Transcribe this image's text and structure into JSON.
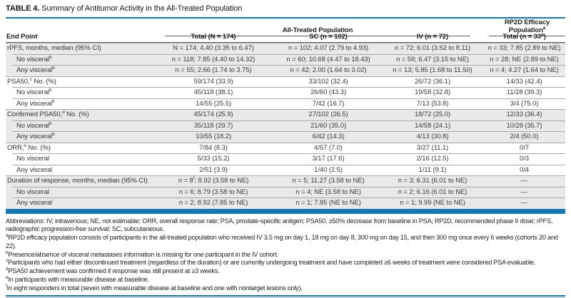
{
  "colors": {
    "accent_blue": "#1478b2",
    "row_shade": "#e9e9e9"
  },
  "title": {
    "label": "TABLE 4.",
    "text": "Summary of Antitumor Activity in the All-Treated Population"
  },
  "table": {
    "group_headers": {
      "all_treated": "All-Treated Population",
      "rp2d": "RP2D Efficacy Population^a"
    },
    "endpoint_label": "End Point",
    "col_headers": [
      "Total (N = 174)",
      "SC (n = 102)",
      "IV (n = 72)",
      "Total (n = 33^a)"
    ],
    "rows": [
      {
        "label": "rPFS, months, median (95% CI)",
        "indent": false,
        "shaded": true,
        "cells": [
          "N = 174; 4.40 (3.35 to 6.47)",
          "n = 102; 4.07 (2.79 to 4.93)",
          "n = 72; 6.01 (3.52 to 8.11)",
          "n = 33; 7.85 (2.89 to NE)"
        ]
      },
      {
        "label": "No visceral^b",
        "indent": true,
        "shaded": true,
        "cells": [
          "n = 118; 7.85 (4.40 to 14.32)",
          "n = 60; 10.68 (4.47 to 18.43)",
          "n = 58; 6.47 (3.15 to NE)",
          "n = 28; NE (2.89 to NE)"
        ]
      },
      {
        "label": "Any visceral^b",
        "indent": true,
        "shaded": true,
        "cells": [
          "n = 55; 2.66 (1.74 to 3.75)",
          "n = 42; 2.00 (1.64 to 3.02)",
          "n = 13; 5.85 (1.68 to 11.50)",
          "n = 4; 4.27 (1.64 to NE)"
        ]
      },
      {
        "label": "PSA50,^c No. (%)",
        "indent": false,
        "shaded": false,
        "cells": [
          "59/174 (33.9)",
          "33/102 (32.4)",
          "26/72 (36.1)",
          "14/33 (42.4)"
        ]
      },
      {
        "label": "No visceral^b",
        "indent": true,
        "shaded": false,
        "cells": [
          "45/118 (38.1)",
          "26/60 (43.3)",
          "19/58 (32.8)",
          "11/28 (39.3)"
        ]
      },
      {
        "label": "Any visceral^b",
        "indent": true,
        "shaded": false,
        "cells": [
          "14/55 (25.5)",
          "7/42 (16.7)",
          "7/13 (53.8)",
          "3/4 (75.0)"
        ]
      },
      {
        "label": "Confirmed PSA50,^d No. (%)",
        "indent": false,
        "shaded": true,
        "cells": [
          "45/174 (25.9)",
          "27/102 (26.5)",
          "18/72 (25.0)",
          "12/33 (36.4)"
        ]
      },
      {
        "label": "No visceral^b",
        "indent": true,
        "shaded": true,
        "cells": [
          "35/118 (29.7)",
          "21/60 (35.0)",
          "14/58 (24.1)",
          "10/28 (35.7)"
        ]
      },
      {
        "label": "Any visceral^b",
        "indent": true,
        "shaded": true,
        "cells": [
          "10/55 (18.2)",
          "6/42 (14.3)",
          "4/13 (30.8)",
          "2/4 (50.0)"
        ]
      },
      {
        "label": "ORR,^e No. (%)",
        "indent": false,
        "shaded": false,
        "cells": [
          "7/84 (8.3)",
          "4/57 (7.0)",
          "3/27 (11.1)",
          "0/7"
        ]
      },
      {
        "label": "No visceral",
        "indent": true,
        "shaded": false,
        "cells": [
          "5/33 (15.2)",
          "3/17 (17.6)",
          "2/16 (12.5)",
          "0/3"
        ]
      },
      {
        "label": "Any visceral",
        "indent": true,
        "shaded": false,
        "cells": [
          "2/51 (3.9)",
          "1/40 (2.5)",
          "1/11 (9.1)",
          "0/4"
        ]
      },
      {
        "label": "Duration of response, months, median (95% CI)",
        "indent": false,
        "shaded": true,
        "cells": [
          "n = 8^f; 8.92 (3.58 to NE)",
          "n = 5; 11.27 (3.58 to NE)",
          "n = 3; 6.31 (6.01 to NE)",
          "—"
        ]
      },
      {
        "label": "No visceral",
        "indent": true,
        "shaded": true,
        "cells": [
          "n = 6; 8.79 (3.58 to NE)",
          "n = 4; NE (3.58 to NE)",
          "n = 2; 6.16 (6.01 to NE)",
          "—"
        ]
      },
      {
        "label": "Any visceral",
        "indent": true,
        "shaded": true,
        "cells": [
          "n = 2; 8.92 (7.85 to NE)",
          "n = 1; 7.85 (NE to NE)",
          "n = 1; 9.99 (NE to NE)",
          "—"
        ]
      }
    ]
  },
  "footnotes": [
    {
      "marker": "",
      "text": "Abbreviations: IV, intravenous; NE, not estimable; ORR, overall response rate; PSA, prostate-specific antigen; PSA50, ≥50% decrease from baseline in PSA; RP2D, recommended phase II dose; rPFS, radiographic progression-free survival; SC, subcutaneous."
    },
    {
      "marker": "a",
      "text": "RP2D efficacy population consists of participants in the all-treated population who received IV 3.5 mg on day 1, 18 mg on day 8, 300 mg on day 15, and then 300 mg once every 6 weeks (cohorts 20 and 22)."
    },
    {
      "marker": "b",
      "text": "Presence/absence of visceral metastases information is missing for one participant in the IV cohort."
    },
    {
      "marker": "c",
      "text": "Participants who had either discontinued treatment (regardless of the duration) or are currently undergoing treatment and have completed ≥6 weeks of treatment were considered PSA evaluable."
    },
    {
      "marker": "d",
      "text": "PSA50 achievement was confirmed if response was still present at ≥3 weeks."
    },
    {
      "marker": "e",
      "text": "In participants with measurable disease at baseline."
    },
    {
      "marker": "f",
      "text": "In eight responders in total (seven with measurable disease at baseline and one with nontarget lesions only)."
    }
  ]
}
